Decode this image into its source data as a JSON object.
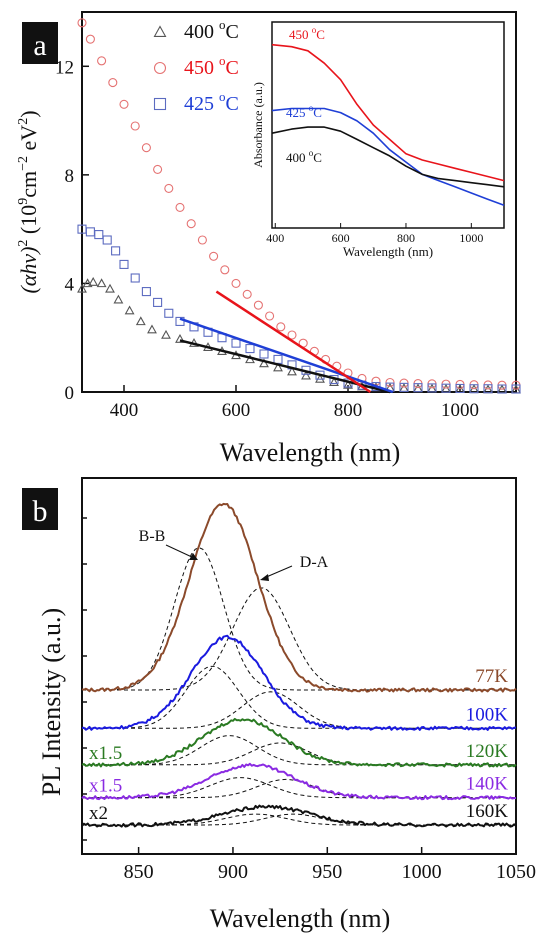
{
  "panels": [
    {
      "label": "a",
      "chart_data": {
        "type": "scatter",
        "xlabel": "Wavelength (nm)",
        "ylabel_parts": [
          "(αhν)",
          "2",
          " (10",
          "9",
          "cm",
          "−2",
          " eV",
          "2",
          ")"
        ],
        "xlim": [
          325,
          1100
        ],
        "ylim": [
          0,
          14
        ],
        "xticks": [
          400,
          600,
          800,
          1000
        ],
        "yticks": [
          0,
          4,
          8,
          12
        ],
        "legend_position": "top-left",
        "series": [
          {
            "name": "400 °C",
            "name_main": "400 ",
            "name_sup": "o",
            "name_unit": "C",
            "marker": "triangle",
            "color": "#555555",
            "label_color": "#111111",
            "x": [
              325,
              335,
              345,
              360,
              375,
              390,
              410,
              430,
              450,
              475,
              500,
              525,
              550,
              575,
              600,
              625,
              650,
              675,
              700,
              725,
              750,
              775,
              800,
              825,
              850,
              875,
              900,
              925,
              950,
              975,
              1000,
              1025,
              1050,
              1075,
              1100
            ],
            "y": [
              3.8,
              4.0,
              4.05,
              4.0,
              3.8,
              3.4,
              3.0,
              2.6,
              2.3,
              2.1,
              1.95,
              1.8,
              1.65,
              1.5,
              1.35,
              1.2,
              1.05,
              0.9,
              0.75,
              0.6,
              0.48,
              0.36,
              0.26,
              0.2,
              0.17,
              0.15,
              0.14,
              0.13,
              0.12,
              0.11,
              0.1,
              0.1,
              0.09,
              0.09,
              0.09
            ]
          },
          {
            "name": "450 °C",
            "name_main": "450 ",
            "name_sup": "o",
            "name_unit": "C",
            "marker": "circle",
            "color": "#e57373",
            "label_color": "#e8141b",
            "x": [
              325,
              340,
              360,
              380,
              400,
              420,
              440,
              460,
              480,
              500,
              520,
              540,
              560,
              580,
              600,
              620,
              640,
              660,
              680,
              700,
              720,
              740,
              760,
              780,
              800,
              825,
              850,
              875,
              900,
              925,
              950,
              975,
              1000,
              1025,
              1050,
              1075,
              1100
            ],
            "y": [
              13.6,
              13.0,
              12.2,
              11.4,
              10.6,
              9.8,
              9.0,
              8.2,
              7.5,
              6.8,
              6.2,
              5.6,
              5.0,
              4.5,
              4.0,
              3.6,
              3.2,
              2.8,
              2.4,
              2.1,
              1.8,
              1.5,
              1.2,
              0.95,
              0.7,
              0.5,
              0.4,
              0.35,
              0.33,
              0.31,
              0.3,
              0.29,
              0.28,
              0.27,
              0.26,
              0.25,
              0.25
            ]
          },
          {
            "name": "425 °C",
            "name_main": "425 ",
            "name_sup": "o",
            "name_unit": "C",
            "marker": "square",
            "color": "#5c6bc0",
            "label_color": "#1f3fd6",
            "x": [
              325,
              340,
              355,
              370,
              385,
              400,
              420,
              440,
              460,
              480,
              500,
              525,
              550,
              575,
              600,
              625,
              650,
              675,
              700,
              725,
              750,
              775,
              800,
              825,
              850,
              875,
              900,
              925,
              950,
              975,
              1000,
              1025,
              1050,
              1075,
              1100
            ],
            "y": [
              6.0,
              5.9,
              5.8,
              5.6,
              5.2,
              4.7,
              4.2,
              3.7,
              3.3,
              2.9,
              2.6,
              2.4,
              2.2,
              2.0,
              1.8,
              1.6,
              1.4,
              1.2,
              1.0,
              0.8,
              0.62,
              0.46,
              0.33,
              0.25,
              0.2,
              0.18,
              0.17,
              0.16,
              0.15,
              0.14,
              0.13,
              0.12,
              0.12,
              0.11,
              0.11
            ]
          }
        ],
        "fit_lines": [
          {
            "color": "#111111",
            "x": [
              500,
              875
            ],
            "y": [
              1.9,
              0
            ]
          },
          {
            "color": "#1f3fd6",
            "x": [
              500,
              880
            ],
            "y": [
              2.7,
              0
            ]
          },
          {
            "color": "#e8141b",
            "x": [
              565,
              840
            ],
            "y": [
              3.7,
              0
            ]
          }
        ],
        "inset": {
          "xlabel": "Wavelength (nm)",
          "ylabel": "Absorbance (a.u.)",
          "xlim": [
            390,
            1100
          ],
          "ylim": [
            0,
            10
          ],
          "xticks": [
            400,
            600,
            800,
            1000
          ],
          "lines": [
            {
              "name": "450 °C",
              "name_main": "450 ",
              "name_sup": "o",
              "name_unit": "C",
              "color": "#e8141b",
              "x": [
                390,
                450,
                500,
                550,
                600,
                650,
                700,
                750,
                800,
                850,
                900,
                950,
                1000,
                1050,
                1100
              ],
              "y": [
                8.9,
                8.8,
                8.6,
                8.0,
                7.2,
                6.0,
                5.0,
                4.3,
                3.6,
                3.3,
                3.1,
                2.9,
                2.7,
                2.5,
                2.3
              ]
            },
            {
              "name": "425 °C",
              "name_main": "425 ",
              "name_sup": "o",
              "name_unit": "C",
              "color": "#1f3fd6",
              "x": [
                390,
                450,
                500,
                550,
                600,
                650,
                700,
                750,
                800,
                850,
                900,
                950,
                1000,
                1050,
                1100
              ],
              "y": [
                5.7,
                5.8,
                5.8,
                5.8,
                5.6,
                5.2,
                4.6,
                3.8,
                3.2,
                2.6,
                2.3,
                2.0,
                1.7,
                1.4,
                1.1
              ]
            },
            {
              "name": "400 °C",
              "name_main": "400 ",
              "name_sup": "o",
              "name_unit": "C",
              "color": "#111111",
              "x": [
                390,
                450,
                500,
                550,
                600,
                650,
                700,
                750,
                800,
                850,
                900,
                950,
                1000,
                1050,
                1100
              ],
              "y": [
                4.6,
                4.8,
                4.9,
                4.9,
                4.7,
                4.3,
                3.9,
                3.5,
                3.0,
                2.6,
                2.4,
                2.3,
                2.2,
                2.1,
                2.0
              ]
            }
          ]
        }
      }
    },
    {
      "label": "b",
      "chart_data": {
        "type": "line",
        "xlabel": "Wavelength (nm)",
        "ylabel": "PL Intensity (a.u.)",
        "xlim": [
          820,
          1050
        ],
        "xticks": [
          850,
          900,
          950,
          1000,
          1050
        ],
        "annotations": [
          "B-B",
          "D-A"
        ],
        "series": [
          {
            "name": "77K",
            "color": "#8b4a2b",
            "scale": "",
            "baseline": 0.0,
            "peaks": [
              {
                "center": 895,
                "amp": 5.1,
                "width": 36
              }
            ]
          },
          {
            "name": "100K",
            "color": "#1a1adf",
            "scale": "",
            "baseline": 1.05,
            "peaks": [
              {
                "center": 897,
                "amp": 2.5,
                "width": 38
              }
            ]
          },
          {
            "name": "120K",
            "color": "#2a7a22",
            "scale": "x1.5",
            "baseline": 2.05,
            "peaks": [
              {
                "center": 905,
                "amp": 1.25,
                "width": 42
              }
            ]
          },
          {
            "name": "140K",
            "color": "#8a2be2",
            "scale": "x1.5",
            "baseline": 2.95,
            "peaks": [
              {
                "center": 910,
                "amp": 0.9,
                "width": 44
              }
            ]
          },
          {
            "name": "160K",
            "color": "#111111",
            "scale": "x2",
            "baseline": 3.7,
            "peaks": [
              {
                "center": 918,
                "amp": 0.5,
                "width": 46
              }
            ]
          }
        ],
        "deconvolution": [
          {
            "baseline": 0.0,
            "components": [
              {
                "center": 882,
                "amp": 3.9,
                "width": 26
              },
              {
                "center": 915,
                "amp": 2.8,
                "width": 30
              }
            ]
          },
          {
            "baseline": 1.05,
            "components": [
              {
                "center": 889,
                "amp": 1.7,
                "width": 28
              },
              {
                "center": 920,
                "amp": 1.0,
                "width": 30
              }
            ]
          },
          {
            "baseline": 2.05,
            "components": [
              {
                "center": 898,
                "amp": 0.8,
                "width": 30
              },
              {
                "center": 925,
                "amp": 0.6,
                "width": 30
              }
            ]
          },
          {
            "baseline": 2.95,
            "components": [
              {
                "center": 904,
                "amp": 0.55,
                "width": 32
              },
              {
                "center": 928,
                "amp": 0.5,
                "width": 30
              }
            ]
          },
          {
            "baseline": 3.7,
            "components": [
              {
                "center": 912,
                "amp": 0.3,
                "width": 32
              },
              {
                "center": 932,
                "amp": 0.3,
                "width": 30
              }
            ]
          }
        ]
      }
    }
  ]
}
